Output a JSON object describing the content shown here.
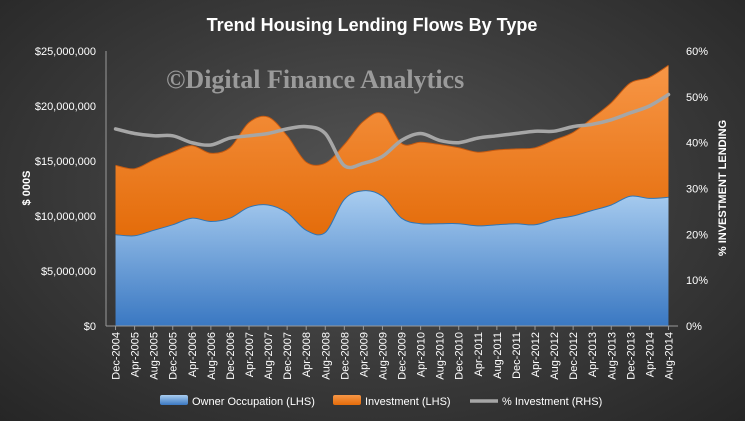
{
  "chart_data": {
    "type": "area",
    "title": "Trend Housing Lending Flows By Type",
    "watermark": "©Digital Finance Analytics",
    "ylabel_left": "$ 000S",
    "ylabel_right": "% INVESTMENT LENDING",
    "ylim_left": [
      0,
      25000000
    ],
    "ylim_right": [
      0,
      60
    ],
    "yticks_left": [
      "$0",
      "$5,000,000",
      "$10,000,000",
      "$15,000,000",
      "$20,000,000",
      "$25,000,000"
    ],
    "yticks_right": [
      "0%",
      "10%",
      "20%",
      "30%",
      "40%",
      "50%",
      "60%"
    ],
    "grid": false,
    "legend_position": "bottom",
    "x_labels": [
      "Dec-2004",
      "Apr-2005",
      "Aug-2005",
      "Dec-2005",
      "Apr-2006",
      "Aug-2006",
      "Dec-2006",
      "Apr-2007",
      "Aug-2007",
      "Dec-2007",
      "Apr-2008",
      "Aug-2008",
      "Dec-2008",
      "Apr-2009",
      "Aug-2009",
      "Dec-2009",
      "Apr-2010",
      "Aug-2010",
      "Dec-2010",
      "Apr-2011",
      "Aug-2011",
      "Dec-2011",
      "Apr-2012",
      "Aug-2012",
      "Dec-2012",
      "Apr-2013",
      "Aug-2013",
      "Dec-2013",
      "Apr-2014",
      "Aug-2014"
    ],
    "series": [
      {
        "name": "Owner Occupation (LHS)",
        "kind": "area",
        "axis": "left",
        "color": "#5b9bd5",
        "values": [
          8300000,
          8200000,
          8700000,
          9200000,
          9800000,
          9500000,
          9800000,
          10800000,
          11000000,
          10300000,
          8700000,
          8500000,
          11500000,
          12300000,
          11800000,
          9800000,
          9300000,
          9300000,
          9300000,
          9100000,
          9200000,
          9300000,
          9200000,
          9700000,
          10000000,
          10500000,
          11000000,
          11800000,
          11600000,
          11700000
        ]
      },
      {
        "name": "Investment (LHS)",
        "kind": "area",
        "axis": "left",
        "color": "#ed7d31",
        "values": [
          6300000,
          6100000,
          6400000,
          6600000,
          6600000,
          6200000,
          6400000,
          7700000,
          8000000,
          7000000,
          6200000,
          6300000,
          5000000,
          6300000,
          7500000,
          6800000,
          7400000,
          7200000,
          6900000,
          6700000,
          6800000,
          6800000,
          7000000,
          7200000,
          7600000,
          8400000,
          9300000,
          10300000,
          11000000,
          12000000
        ]
      },
      {
        "name": "% Investment (RHS)",
        "kind": "line",
        "axis": "right",
        "color": "#a6a6a6",
        "values": [
          43,
          42,
          41.5,
          41.5,
          40,
          39.5,
          41,
          41.5,
          42,
          43,
          43.5,
          42,
          35,
          35.5,
          37,
          40.5,
          42,
          40.5,
          40,
          41,
          41.5,
          42,
          42.5,
          42.5,
          43.5,
          44,
          45,
          46.5,
          48,
          50.5
        ]
      }
    ]
  }
}
